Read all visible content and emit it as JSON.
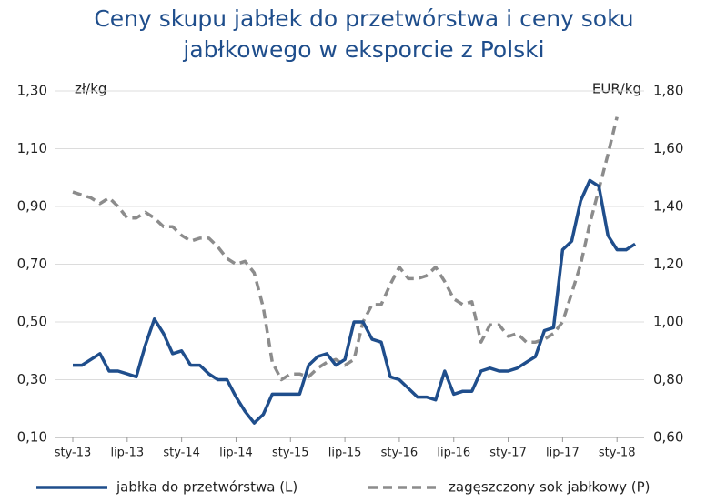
{
  "chart_data": {
    "type": "line",
    "title": "Ceny skupu jabłek do przetwórstwa i ceny soku jabłkowego w eksporcie z Polski",
    "ylabel": "zł/kg",
    "y2label": "EUR/kg",
    "categories": [
      "sty-13",
      null,
      null,
      null,
      null,
      null,
      "lip-13",
      null,
      null,
      null,
      null,
      null,
      "sty-14",
      null,
      null,
      null,
      null,
      null,
      "lip-14",
      null,
      null,
      null,
      null,
      null,
      "sty-15",
      null,
      null,
      null,
      null,
      null,
      "lip-15",
      null,
      null,
      null,
      null,
      null,
      "sty-16",
      null,
      null,
      null,
      null,
      null,
      "lip-16",
      null,
      null,
      null,
      null,
      null,
      "sty-17",
      null,
      null,
      null,
      null,
      null,
      "lip-17",
      null,
      null,
      null,
      null,
      null,
      "sty-18",
      null,
      null
    ],
    "series": [
      {
        "name": "jabłka do przetwórstwa (L)",
        "color": "#1f4e8c",
        "dash": false,
        "values": [
          0.35,
          0.35,
          0.37,
          0.39,
          0.33,
          0.33,
          0.32,
          0.31,
          0.42,
          0.51,
          0.46,
          0.39,
          0.4,
          0.35,
          0.35,
          0.32,
          0.3,
          0.3,
          0.24,
          0.19,
          0.15,
          0.18,
          0.25,
          0.25,
          0.25,
          0.25,
          0.35,
          0.38,
          0.39,
          0.35,
          0.37,
          0.5,
          0.5,
          0.44,
          0.43,
          0.31,
          0.3,
          0.27,
          0.24,
          0.24,
          0.23,
          0.33,
          0.25,
          0.26,
          0.26,
          0.33,
          0.34,
          0.33,
          0.33,
          0.34,
          0.36,
          0.38,
          0.47,
          0.48,
          0.75,
          0.78,
          0.92,
          0.99,
          0.97,
          0.8,
          0.75,
          0.75,
          0.77
        ]
      },
      {
        "name": "zagęszczony sok jabłkowy (P)",
        "color": "#8c8c8c",
        "dash": true,
        "axis": "y2",
        "values": [
          1.45,
          1.44,
          1.43,
          1.41,
          1.43,
          1.4,
          1.36,
          1.36,
          1.38,
          1.36,
          1.33,
          1.33,
          1.3,
          1.28,
          1.29,
          1.29,
          1.26,
          1.22,
          1.2,
          1.21,
          1.17,
          1.05,
          0.86,
          0.8,
          0.82,
          0.82,
          0.81,
          0.84,
          0.86,
          0.87,
          0.85,
          0.87,
          1.0,
          1.06,
          1.06,
          1.13,
          1.19,
          1.15,
          1.15,
          1.16,
          1.19,
          1.14,
          1.08,
          1.06,
          1.07,
          0.93,
          0.99,
          0.99,
          0.95,
          0.96,
          0.93,
          0.93,
          0.94,
          0.96,
          1.0,
          1.1,
          1.2,
          1.34,
          1.46,
          1.58,
          1.71,
          null,
          null
        ]
      }
    ],
    "ylim": [
      0.1,
      1.3
    ],
    "yticks": [
      {
        "value": 0.1,
        "label": "0,10"
      },
      {
        "value": 0.3,
        "label": "0,30"
      },
      {
        "value": 0.5,
        "label": "0,50"
      },
      {
        "value": 0.7,
        "label": "0,70"
      },
      {
        "value": 0.9,
        "label": "0,90"
      },
      {
        "value": 1.1,
        "label": "1,10"
      },
      {
        "value": 1.3,
        "label": "1,30"
      }
    ],
    "y2lim": [
      0.6,
      1.8
    ],
    "y2ticks": [
      {
        "value": 0.6,
        "label": "0,60"
      },
      {
        "value": 0.8,
        "label": "0,80"
      },
      {
        "value": 1.0,
        "label": "1,00"
      },
      {
        "value": 1.2,
        "label": "1,20"
      },
      {
        "value": 1.4,
        "label": "1,40"
      },
      {
        "value": 1.6,
        "label": "1,60"
      },
      {
        "value": 1.8,
        "label": "1,80"
      }
    ],
    "grid": true
  }
}
